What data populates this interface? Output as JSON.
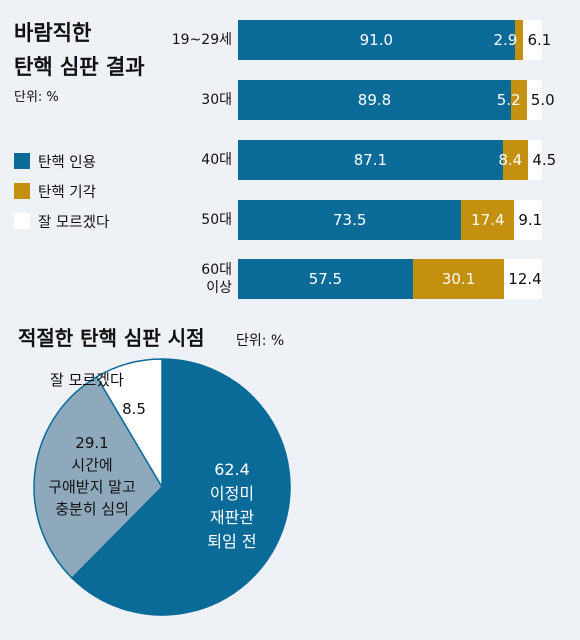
{
  "top_title": [
    "바람직한",
    "탄핵 심판 결과"
  ],
  "top_unit": "단위: %",
  "legend": [
    {
      "label": "탄핵 인용",
      "color": "#0b6b98"
    },
    {
      "label": "탄핵 기각",
      "color": "#c3900f"
    },
    {
      "label": "잘 모르겠다",
      "color": "#ffffff"
    }
  ],
  "bottom_title": "적절한 탄핵 심판 시점",
  "bottom_unit": "단위: %",
  "chart_data": [
    {
      "type": "bar",
      "stacked": true,
      "orientation": "horizontal",
      "categories": [
        "19~29세",
        "30대",
        "40대",
        "50대",
        "60대\n이상"
      ],
      "series": [
        {
          "name": "탄핵 인용",
          "values": [
            91.0,
            89.8,
            87.1,
            73.5,
            57.5
          ],
          "labels": [
            "91.0",
            "89.8",
            "87.1",
            "73.5",
            "57.5"
          ],
          "color": "#0b6b98"
        },
        {
          "name": "탄핵 기각",
          "values": [
            2.9,
            5.2,
            8.4,
            17.4,
            30.1
          ],
          "labels": [
            "2.9",
            "5.2",
            "8.4",
            "17.4",
            "30.1"
          ],
          "color": "#c3900f"
        },
        {
          "name": "잘 모르겠다",
          "values": [
            6.1,
            5.0,
            4.5,
            9.1,
            12.4
          ],
          "labels": [
            "6.1",
            "5.0",
            "4.5",
            "9.1",
            "12.4"
          ],
          "color": "#ffffff"
        }
      ],
      "title": "바람직한 탄핵 심판 결과",
      "unit": "단위: %"
    },
    {
      "type": "pie",
      "title": "적절한 탄핵 심판 시점",
      "unit": "단위: %",
      "slices": [
        {
          "label": "이정미 재판관 퇴임 전",
          "value": 62.4,
          "value_label": "62.4",
          "text_lines": [
            "이정미",
            "재판관",
            "퇴임 전"
          ],
          "color": "#0b6b98"
        },
        {
          "label": "시간에 구애받지 말고 충분히 심의",
          "value": 29.1,
          "value_label": "29.1",
          "text_lines": [
            "시간에",
            "구애받지 말고",
            "충분히 심의"
          ],
          "color": "#8fa9bc"
        },
        {
          "label": "잘 모르겠다",
          "value": 8.5,
          "value_label": "8.5",
          "text_lines": [
            "잘 모르겠다"
          ],
          "color": "#ffffff"
        }
      ]
    }
  ]
}
